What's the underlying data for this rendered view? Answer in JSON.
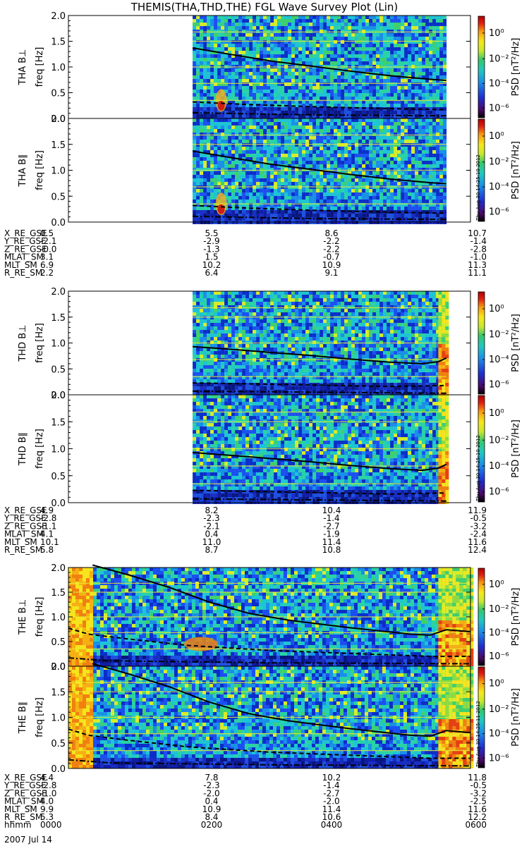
{
  "title": "THEMIS(THA,THD,THE) FGL Wave Survey Plot (Lin)",
  "colorbar": {
    "label": "PSD [nT²/Hz]",
    "ticks": [
      "10⁰",
      "10⁻²",
      "10⁻⁴",
      "10⁻⁶"
    ],
    "timestamps": [
      "Thu Aug 30 14:25:10 2012",
      "Thu Aug 30 14:25:10 2012",
      "Thu Aug 30 14:25:11 2012"
    ]
  },
  "freq_axis_label": "freq [Hz]",
  "freq_ticks": [
    "0.0",
    "0.5",
    "1.0",
    "1.5",
    "2.0"
  ],
  "colors": {
    "text": "#000000",
    "background": "#ffffff"
  },
  "chart_data": [
    {
      "type": "heatmap",
      "panel_label": "THA B⊥",
      "probe": "THA",
      "xlim": [
        "0000",
        "0600"
      ],
      "ylim": [
        0,
        2.0
      ],
      "ylabel": "freq [Hz]",
      "data_start": 0.309,
      "data_end": 0.94,
      "curves": {
        "solid": [
          [
            0.309,
            1.37
          ],
          [
            0.4,
            1.25
          ],
          [
            0.5,
            1.12
          ],
          [
            0.6,
            1.02
          ],
          [
            0.7,
            0.92
          ],
          [
            0.8,
            0.83
          ],
          [
            0.9,
            0.76
          ],
          [
            0.94,
            0.74
          ]
        ],
        "dashed": [
          [
            0.309,
            0.32
          ],
          [
            0.45,
            0.27
          ],
          [
            0.6,
            0.23
          ],
          [
            0.8,
            0.19
          ],
          [
            0.94,
            0.17
          ]
        ],
        "dashdot": [
          [
            0.309,
            0.11
          ],
          [
            0.6,
            0.07
          ],
          [
            0.94,
            0.05
          ]
        ]
      }
    },
    {
      "type": "heatmap",
      "panel_label": "THA B∥",
      "probe": "THA",
      "xlim": [
        "0000",
        "0600"
      ],
      "ylim": [
        0,
        2.0
      ],
      "ylabel": "freq [Hz]",
      "data_start": 0.309,
      "data_end": 0.94,
      "curves": {
        "solid": [
          [
            0.309,
            1.37
          ],
          [
            0.4,
            1.25
          ],
          [
            0.5,
            1.12
          ],
          [
            0.6,
            1.02
          ],
          [
            0.7,
            0.92
          ],
          [
            0.8,
            0.83
          ],
          [
            0.9,
            0.76
          ],
          [
            0.94,
            0.74
          ]
        ],
        "dashed": [
          [
            0.309,
            0.32
          ],
          [
            0.45,
            0.27
          ],
          [
            0.6,
            0.23
          ],
          [
            0.8,
            0.19
          ],
          [
            0.94,
            0.17
          ]
        ],
        "dashdot": [
          [
            0.309,
            0.11
          ],
          [
            0.6,
            0.07
          ],
          [
            0.94,
            0.05
          ]
        ]
      }
    },
    {
      "type": "heatmap",
      "panel_label": "THD B⊥",
      "probe": "THD",
      "xlim": [
        "0000",
        "0600"
      ],
      "ylim": [
        0,
        2.0
      ],
      "ylabel": "freq [Hz]",
      "data_start": 0.309,
      "data_end": 0.94,
      "curves": {
        "solid": [
          [
            0.309,
            0.93
          ],
          [
            0.4,
            0.88
          ],
          [
            0.5,
            0.82
          ],
          [
            0.6,
            0.76
          ],
          [
            0.7,
            0.69
          ],
          [
            0.8,
            0.63
          ],
          [
            0.88,
            0.6
          ],
          [
            0.92,
            0.64
          ],
          [
            0.94,
            0.71
          ]
        ],
        "dashed": [
          [
            0.309,
            0.23
          ],
          [
            0.6,
            0.19
          ],
          [
            0.8,
            0.16
          ],
          [
            0.94,
            0.18
          ]
        ],
        "dashdot": [
          [
            0.309,
            0.07
          ],
          [
            0.94,
            0.03
          ]
        ]
      }
    },
    {
      "type": "heatmap",
      "panel_label": "THD B∥",
      "probe": "THD",
      "xlim": [
        "0000",
        "0600"
      ],
      "ylim": [
        0,
        2.0
      ],
      "ylabel": "freq [Hz]",
      "data_start": 0.309,
      "data_end": 0.94,
      "curves": {
        "solid": [
          [
            0.309,
            0.93
          ],
          [
            0.4,
            0.88
          ],
          [
            0.5,
            0.82
          ],
          [
            0.6,
            0.76
          ],
          [
            0.7,
            0.69
          ],
          [
            0.8,
            0.63
          ],
          [
            0.88,
            0.6
          ],
          [
            0.92,
            0.64
          ],
          [
            0.94,
            0.71
          ]
        ],
        "dashed": [
          [
            0.309,
            0.23
          ],
          [
            0.6,
            0.19
          ],
          [
            0.8,
            0.16
          ],
          [
            0.94,
            0.18
          ]
        ],
        "dashdot": [
          [
            0.309,
            0.07
          ],
          [
            0.94,
            0.03
          ]
        ]
      }
    },
    {
      "type": "heatmap",
      "panel_label": "THE B⊥",
      "probe": "THE",
      "xlim": [
        "0000",
        "0600"
      ],
      "ylim": [
        0,
        2.0
      ],
      "ylabel": "freq [Hz]",
      "data_start": 0.0,
      "data_end": 1.0,
      "curves": {
        "solid": [
          [
            0.06,
            2.05
          ],
          [
            0.15,
            1.85
          ],
          [
            0.25,
            1.6
          ],
          [
            0.35,
            1.3
          ],
          [
            0.45,
            1.07
          ],
          [
            0.55,
            0.93
          ],
          [
            0.7,
            0.78
          ],
          [
            0.85,
            0.65
          ],
          [
            0.9,
            0.63
          ],
          [
            0.94,
            0.74
          ],
          [
            1.0,
            0.7
          ]
        ],
        "dashed": [
          [
            0.0,
            0.77
          ],
          [
            0.05,
            0.65
          ],
          [
            0.15,
            0.55
          ],
          [
            0.3,
            0.42
          ],
          [
            0.5,
            0.32
          ],
          [
            0.7,
            0.26
          ],
          [
            0.9,
            0.2
          ],
          [
            1.0,
            0.2
          ]
        ],
        "dashdot": [
          [
            0.0,
            0.17
          ],
          [
            0.1,
            0.11
          ],
          [
            0.5,
            0.07
          ],
          [
            1.0,
            0.05
          ]
        ]
      }
    },
    {
      "type": "heatmap",
      "panel_label": "THE B∥",
      "probe": "THE",
      "xlim": [
        "0000",
        "0600"
      ],
      "ylim": [
        0,
        2.0
      ],
      "ylabel": "freq [Hz]",
      "data_start": 0.0,
      "data_end": 1.0,
      "curves": {
        "solid": [
          [
            0.06,
            2.05
          ],
          [
            0.15,
            1.85
          ],
          [
            0.25,
            1.6
          ],
          [
            0.35,
            1.3
          ],
          [
            0.45,
            1.07
          ],
          [
            0.55,
            0.93
          ],
          [
            0.7,
            0.78
          ],
          [
            0.85,
            0.65
          ],
          [
            0.9,
            0.63
          ],
          [
            0.94,
            0.74
          ],
          [
            1.0,
            0.7
          ]
        ],
        "dashed": [
          [
            0.0,
            0.77
          ],
          [
            0.05,
            0.65
          ],
          [
            0.15,
            0.55
          ],
          [
            0.3,
            0.42
          ],
          [
            0.5,
            0.32
          ],
          [
            0.7,
            0.26
          ],
          [
            0.9,
            0.2
          ],
          [
            1.0,
            0.2
          ]
        ],
        "dashdot": [
          [
            0.0,
            0.17
          ],
          [
            0.1,
            0.11
          ],
          [
            0.5,
            0.07
          ],
          [
            1.0,
            0.05
          ]
        ]
      }
    }
  ],
  "ephemeris": [
    {
      "probe": "THA",
      "rows": [
        {
          "label": "X_RE_GSE",
          "values": [
            "0.5",
            "5.5",
            "8.6",
            "10.7"
          ]
        },
        {
          "label": "Y_RE_GSE",
          "values": [
            "-2.1",
            "-2.9",
            "-2.2",
            "-1.4"
          ]
        },
        {
          "label": "Z_RE_GSE",
          "values": [
            "-0.0",
            "-1.3",
            "-2.2",
            "-2.8"
          ]
        },
        {
          "label": "MLAT_SM",
          "values": [
            "3.1",
            "1.5",
            "-0.7",
            "-1.0"
          ]
        },
        {
          "label": "MLT_SM",
          "values": [
            "6.9",
            "10.2",
            "10.9",
            "11.3"
          ]
        },
        {
          "label": "R_RE_SM",
          "values": [
            "2.2",
            "6.4",
            "9.1",
            "11.1"
          ]
        }
      ]
    },
    {
      "probe": "THD",
      "rows": [
        {
          "label": "X_RE_GSE",
          "values": [
            "4.9",
            "8.2",
            "10.4",
            "11.9"
          ]
        },
        {
          "label": "Y_RE_GSE",
          "values": [
            "-2.8",
            "-2.3",
            "-1.4",
            "-0.5"
          ]
        },
        {
          "label": "Z_RE_GSE",
          "values": [
            "-1.1",
            "-2.1",
            "-2.7",
            "-3.2"
          ]
        },
        {
          "label": "MLAT_SM",
          "values": [
            "4.1",
            "0.4",
            "-1.9",
            "-2.4"
          ]
        },
        {
          "label": "MLT_SM",
          "values": [
            "10.1",
            "11.0",
            "11.4",
            "11.6"
          ]
        },
        {
          "label": "R_RE_SM",
          "values": [
            "5.8",
            "8.7",
            "10.8",
            "12.4"
          ]
        }
      ]
    },
    {
      "probe": "THE",
      "rows": [
        {
          "label": "X_RE_GSE",
          "values": [
            "4.4",
            "7.8",
            "10.2",
            "11.8"
          ]
        },
        {
          "label": "Y_RE_GSE",
          "values": [
            "-2.8",
            "-2.3",
            "-1.4",
            "-0.5"
          ]
        },
        {
          "label": "Z_RE_GSE",
          "values": [
            "-1.0",
            "-2.0",
            "-2.7",
            "-3.2"
          ]
        },
        {
          "label": "MLAT_SM",
          "values": [
            "4.0",
            "0.4",
            "-2.0",
            "-2.5"
          ]
        },
        {
          "label": "MLT_SM",
          "values": [
            "9.9",
            "10.9",
            "11.4",
            "11.6"
          ]
        },
        {
          "label": "R_RE_SM",
          "values": [
            "5.3",
            "8.4",
            "10.6",
            "12.2"
          ]
        },
        {
          "label": "hhmm",
          "values": [
            "0000",
            "0200",
            "0400",
            "0600"
          ]
        }
      ]
    }
  ],
  "date_label": "2007 Jul 14"
}
